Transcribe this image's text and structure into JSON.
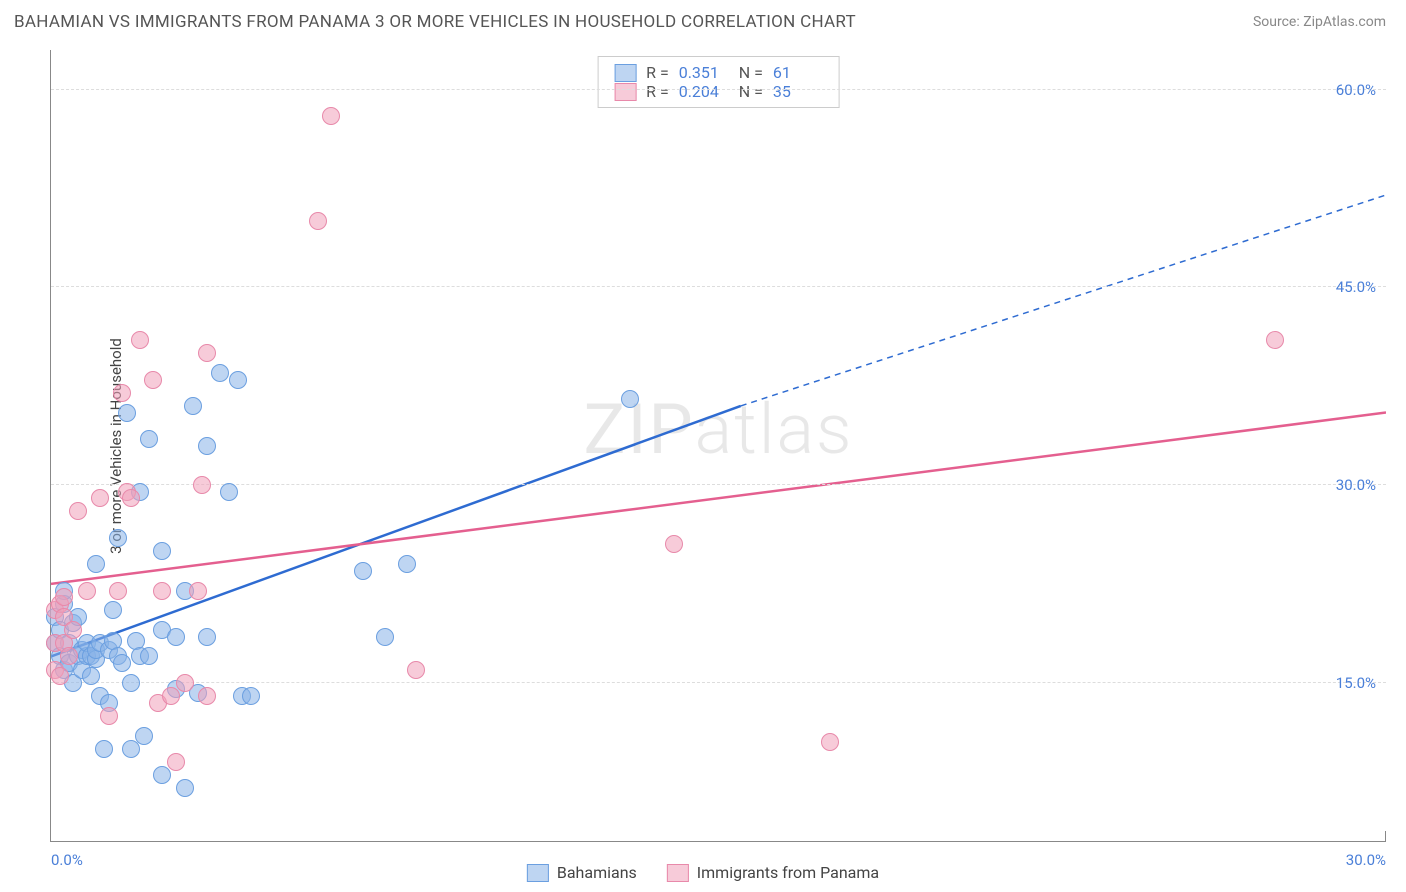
{
  "title": "BAHAMIAN VS IMMIGRANTS FROM PANAMA 3 OR MORE VEHICLES IN HOUSEHOLD CORRELATION CHART",
  "source": "Source: ZipAtlas.com",
  "watermark_a": "ZIP",
  "watermark_b": "atlas",
  "y_axis_label": "3 or more Vehicles in Household",
  "chart": {
    "type": "scatter",
    "xlim": [
      0,
      30
    ],
    "ylim": [
      3,
      63
    ],
    "x_ticks": [
      {
        "v": 0,
        "label": "0.0%"
      },
      {
        "v": 30,
        "label": "30.0%"
      }
    ],
    "y_ticks": [
      {
        "v": 15,
        "label": "15.0%"
      },
      {
        "v": 30,
        "label": "30.0%"
      },
      {
        "v": 45,
        "label": "45.0%"
      },
      {
        "v": 60,
        "label": "60.0%"
      }
    ],
    "grid_color": "#dddddd",
    "background_color": "#ffffff",
    "series": [
      {
        "name": "Bahamians",
        "fill": "rgba(137,178,232,0.55)",
        "stroke": "#6b9fe0",
        "line_color": "#2e6bd1",
        "r": 0.351,
        "n": 61,
        "trend": {
          "x1": 0,
          "y1": 17.0,
          "x2_solid": 15.5,
          "y2_solid": 36.0,
          "x2": 30,
          "y2": 52.0
        },
        "points": [
          [
            0.1,
            20
          ],
          [
            0.1,
            18
          ],
          [
            0.2,
            19
          ],
          [
            0.2,
            17
          ],
          [
            0.3,
            16
          ],
          [
            0.3,
            21
          ],
          [
            0.3,
            22
          ],
          [
            0.4,
            18
          ],
          [
            0.4,
            16.5
          ],
          [
            0.5,
            15
          ],
          [
            0.5,
            19.5
          ],
          [
            0.6,
            17
          ],
          [
            0.6,
            20
          ],
          [
            0.7,
            17.5
          ],
          [
            0.7,
            16
          ],
          [
            0.8,
            17
          ],
          [
            0.8,
            18
          ],
          [
            0.9,
            17
          ],
          [
            0.9,
            15.5
          ],
          [
            1.0,
            24
          ],
          [
            1.0,
            16.8
          ],
          [
            1.0,
            17.5
          ],
          [
            1.1,
            18
          ],
          [
            1.1,
            14
          ],
          [
            1.2,
            10
          ],
          [
            1.3,
            13.5
          ],
          [
            1.3,
            17.5
          ],
          [
            1.4,
            18.2
          ],
          [
            1.4,
            20.5
          ],
          [
            1.5,
            26
          ],
          [
            1.5,
            17
          ],
          [
            1.6,
            16.5
          ],
          [
            1.7,
            35.5
          ],
          [
            1.8,
            15
          ],
          [
            1.8,
            10
          ],
          [
            1.9,
            18.2
          ],
          [
            2.0,
            17
          ],
          [
            2.0,
            29.5
          ],
          [
            2.1,
            11
          ],
          [
            2.2,
            33.5
          ],
          [
            2.2,
            17
          ],
          [
            2.5,
            25
          ],
          [
            2.5,
            19
          ],
          [
            2.5,
            8
          ],
          [
            2.8,
            14.5
          ],
          [
            2.8,
            18.5
          ],
          [
            3.0,
            22
          ],
          [
            3.0,
            7
          ],
          [
            3.2,
            36
          ],
          [
            3.3,
            14.2
          ],
          [
            3.5,
            18.5
          ],
          [
            3.5,
            33
          ],
          [
            3.8,
            38.5
          ],
          [
            4.0,
            29.5
          ],
          [
            4.2,
            38
          ],
          [
            4.3,
            14
          ],
          [
            4.5,
            14
          ],
          [
            7.0,
            23.5
          ],
          [
            7.5,
            18.5
          ],
          [
            8.0,
            24
          ],
          [
            13.0,
            36.5
          ]
        ]
      },
      {
        "name": "Immigrants from Panama",
        "fill": "rgba(240,160,185,0.55)",
        "stroke": "#e889aa",
        "line_color": "#e45f8f",
        "r": 0.204,
        "n": 35,
        "trend": {
          "x1": 0,
          "y1": 22.5,
          "x2_solid": 30,
          "y2_solid": 35.5,
          "x2": 30,
          "y2": 35.5
        },
        "points": [
          [
            0.1,
            20.5
          ],
          [
            0.1,
            16
          ],
          [
            0.1,
            18
          ],
          [
            0.2,
            21
          ],
          [
            0.2,
            15.5
          ],
          [
            0.3,
            20
          ],
          [
            0.3,
            18
          ],
          [
            0.3,
            21.5
          ],
          [
            0.4,
            17
          ],
          [
            0.5,
            19
          ],
          [
            0.6,
            28
          ],
          [
            0.8,
            22
          ],
          [
            1.1,
            29
          ],
          [
            1.3,
            12.5
          ],
          [
            1.5,
            22
          ],
          [
            1.6,
            37
          ],
          [
            1.7,
            29.5
          ],
          [
            1.8,
            29
          ],
          [
            2.0,
            41
          ],
          [
            2.3,
            38
          ],
          [
            2.4,
            13.5
          ],
          [
            2.5,
            22
          ],
          [
            2.7,
            14
          ],
          [
            2.8,
            9
          ],
          [
            3.0,
            15
          ],
          [
            3.3,
            22
          ],
          [
            3.4,
            30
          ],
          [
            3.5,
            40
          ],
          [
            3.5,
            14
          ],
          [
            6.0,
            50
          ],
          [
            6.3,
            58
          ],
          [
            8.2,
            16
          ],
          [
            14.0,
            25.5
          ],
          [
            17.5,
            10.5
          ],
          [
            27.5,
            41
          ]
        ]
      }
    ]
  },
  "stats_box": {
    "rows": [
      {
        "swatch_fill": "rgba(137,178,232,0.55)",
        "swatch_stroke": "#6b9fe0",
        "r_label": "R =",
        "r": "0.351",
        "n_label": "N =",
        "n": "61"
      },
      {
        "swatch_fill": "rgba(240,160,185,0.55)",
        "swatch_stroke": "#e889aa",
        "r_label": "R =",
        "r": "0.204",
        "n_label": "N =",
        "n": "35"
      }
    ]
  },
  "bottom_legend": [
    {
      "swatch_fill": "rgba(137,178,232,0.55)",
      "swatch_stroke": "#6b9fe0",
      "label": "Bahamians"
    },
    {
      "swatch_fill": "rgba(240,160,185,0.55)",
      "swatch_stroke": "#e889aa",
      "label": "Immigrants from Panama"
    }
  ]
}
